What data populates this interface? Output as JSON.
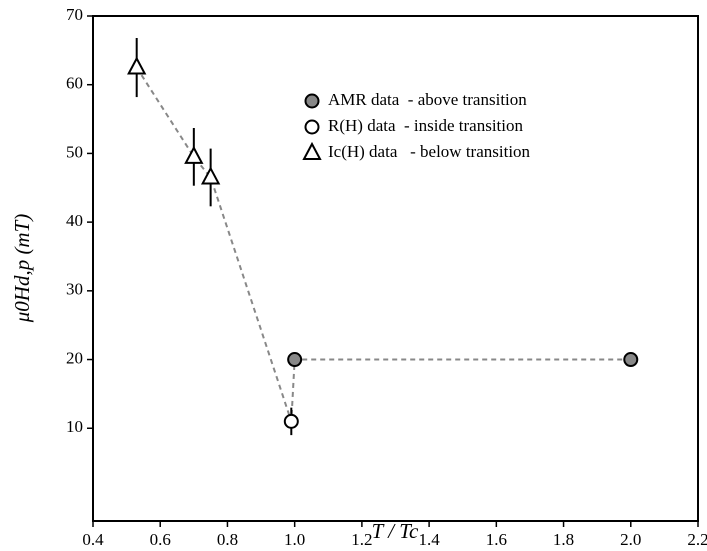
{
  "chart_data": {
    "type": "scatter",
    "x_label": "T / Tc",
    "y_label": "μ0Hd,p (mT)",
    "xlim": [
      0.4,
      2.2
    ],
    "xticks": [
      0.4,
      0.6,
      0.8,
      {
        "value": 1,
        "label": "1.0"
      },
      1.2,
      1.4,
      1.6,
      1.8,
      {
        "value": 2,
        "label": "2.0"
      },
      2.2
    ],
    "ylim": [
      -3.5,
      70
    ],
    "yticks": [
      10,
      20,
      30,
      40,
      50,
      60,
      70
    ],
    "line_color": "#888888",
    "series": [
      {
        "name": "AMR data  - above transition",
        "marker": "circle",
        "color": "#888888",
        "x": [
          1.0,
          2.0
        ],
        "values": [
          20,
          20
        ],
        "errors": [
          0,
          0
        ]
      },
      {
        "name": "R(H) data  - inside transition",
        "marker": "circle",
        "color": "#ffffff",
        "x": [
          0.99
        ],
        "values": [
          11
        ],
        "errors": [
          2
        ]
      },
      {
        "name": "Ic(H) data   - below transition",
        "marker": "triangle",
        "color": "#ffffff",
        "x": [
          0.53,
          0.7,
          0.75
        ],
        "values": [
          62.5,
          49.5,
          46.5
        ],
        "errors": [
          4.3,
          4.2,
          4.2
        ]
      }
    ]
  }
}
